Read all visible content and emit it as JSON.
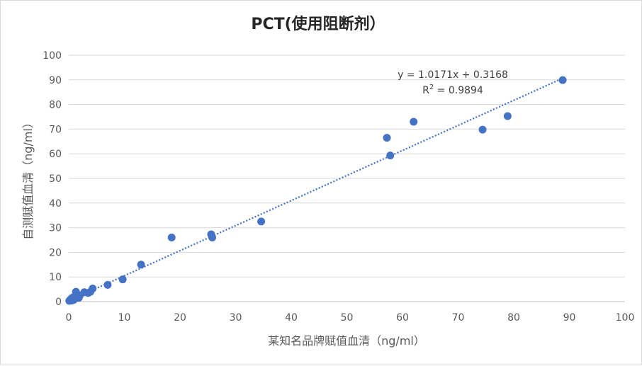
{
  "chart_data": {
    "type": "scatter",
    "title": "PCT(使用阻断剂）",
    "xlabel": "某知名品牌赋值血清（ng/ml）",
    "ylabel": "自测赋值血清（ng/ml）",
    "xlim": [
      0,
      100
    ],
    "ylim": [
      0,
      100
    ],
    "x_ticks": [
      "0",
      "10",
      "20",
      "30",
      "40",
      "50",
      "60",
      "70",
      "80",
      "90",
      "100"
    ],
    "y_ticks": [
      "0",
      "10",
      "20",
      "30",
      "40",
      "50",
      "60",
      "70",
      "80",
      "90",
      "100"
    ],
    "grid": "horizontal",
    "legend": "none",
    "marker_color": "#4472c4",
    "trendline": {
      "type": "linear",
      "slope": 1.0171,
      "intercept": 0.3168,
      "style": "dotted",
      "color": "#4472c4",
      "equation": "y = 1.0171x + 0.3168",
      "r2_label": "R",
      "r2_sup": "2",
      "r2_value": " = 0.9894"
    },
    "points": [
      {
        "x": 0.1,
        "y": 0.3
      },
      {
        "x": 0.2,
        "y": 0.5
      },
      {
        "x": 0.3,
        "y": 0.8
      },
      {
        "x": 0.4,
        "y": 1.0
      },
      {
        "x": 0.5,
        "y": 0.4
      },
      {
        "x": 0.6,
        "y": 1.5
      },
      {
        "x": 0.8,
        "y": 1.2
      },
      {
        "x": 0.9,
        "y": 0.7
      },
      {
        "x": 1.0,
        "y": 2.0
      },
      {
        "x": 1.2,
        "y": 1.5
      },
      {
        "x": 1.3,
        "y": 4.0
      },
      {
        "x": 1.5,
        "y": 2.2
      },
      {
        "x": 1.8,
        "y": 1.5
      },
      {
        "x": 2.0,
        "y": 2.5
      },
      {
        "x": 2.8,
        "y": 3.8
      },
      {
        "x": 3.5,
        "y": 3.5
      },
      {
        "x": 3.9,
        "y": 4.0
      },
      {
        "x": 4.3,
        "y": 5.3
      },
      {
        "x": 7.0,
        "y": 6.8
      },
      {
        "x": 9.7,
        "y": 9.0
      },
      {
        "x": 13.0,
        "y": 15.0
      },
      {
        "x": 18.5,
        "y": 26.0
      },
      {
        "x": 25.6,
        "y": 27.3
      },
      {
        "x": 25.8,
        "y": 26.0
      },
      {
        "x": 34.6,
        "y": 32.5
      },
      {
        "x": 57.2,
        "y": 66.5
      },
      {
        "x": 57.8,
        "y": 59.3
      },
      {
        "x": 62.0,
        "y": 73.0
      },
      {
        "x": 74.4,
        "y": 69.8
      },
      {
        "x": 78.9,
        "y": 75.3
      },
      {
        "x": 88.8,
        "y": 89.9
      }
    ]
  }
}
